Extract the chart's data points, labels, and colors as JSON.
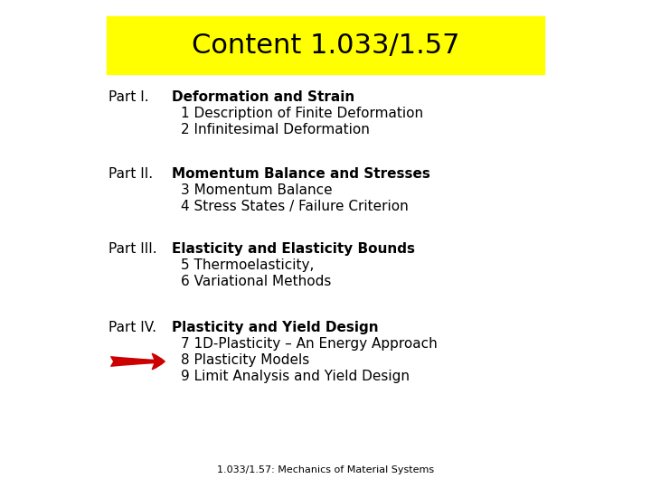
{
  "bg_color": "#ffffff",
  "title_text": "Content 1.033/1.57",
  "title_bg_color": "#ffff00",
  "title_fontsize": 22,
  "sections": [
    {
      "label": "Part I.",
      "bold_text": "Deformation and Strain",
      "items": [
        "1 Description of Finite Deformation",
        "2 Infinitesimal Deformation"
      ],
      "arrow": false
    },
    {
      "label": "Part II.",
      "bold_text": "Momentum Balance and Stresses",
      "items": [
        "3 Momentum Balance",
        "4 Stress States / Failure Criterion"
      ],
      "arrow": false
    },
    {
      "label": "Part III.",
      "bold_text": "Elasticity and Elasticity Bounds",
      "items": [
        "5 Thermoelasticity,",
        "6 Variational Methods"
      ],
      "arrow": false
    },
    {
      "label": "Part IV.",
      "bold_text": "Plasticity and Yield Design",
      "items": [
        "7 1D-Plasticity – An Energy Approach",
        "8 Plasticity Models",
        "9 Limit Analysis and Yield Design"
      ],
      "arrow": true,
      "arrow_item_index": 1
    }
  ],
  "arrow_color": "#cc0000",
  "section_fontsize": 11,
  "item_fontsize": 11,
  "footer_text": "1.033/1.57: Mechanics of Material Systems",
  "footer_fontsize": 8
}
